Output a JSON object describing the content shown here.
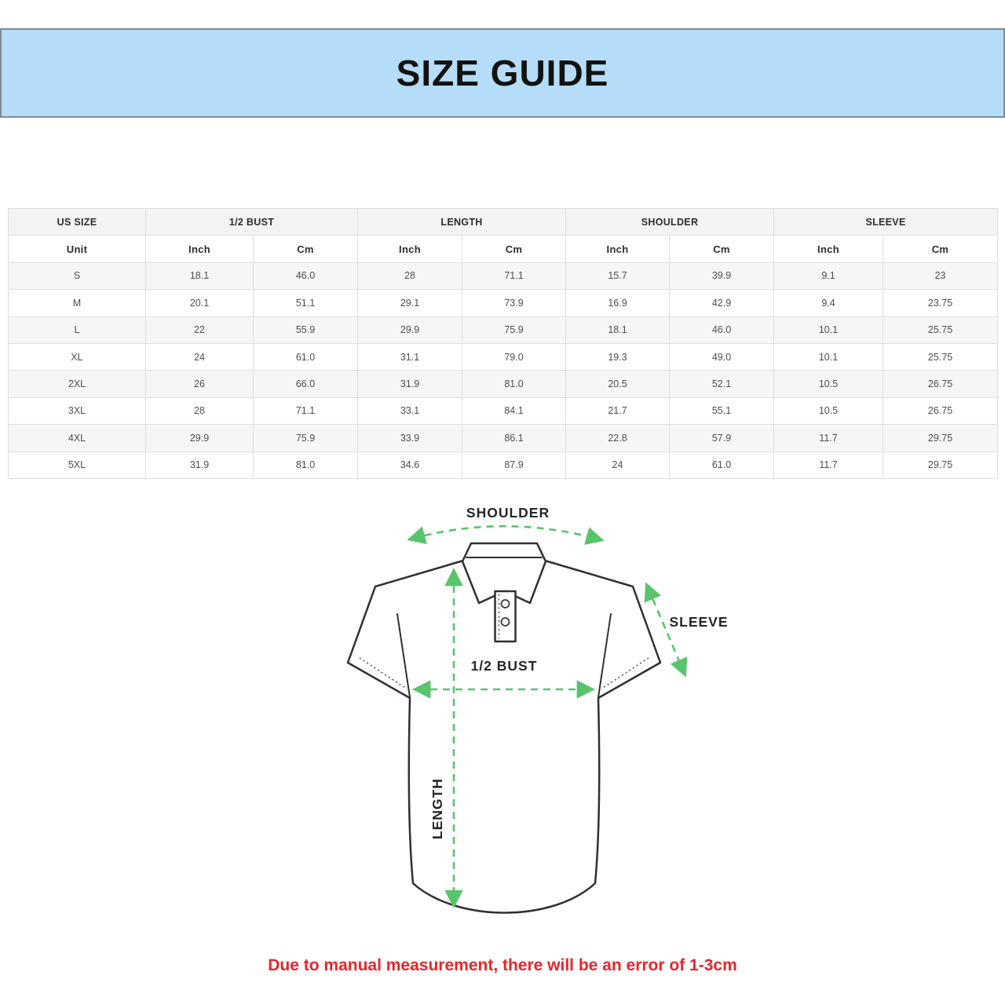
{
  "banner": {
    "title": "SIZE GUIDE",
    "bg_color": "#b5dcf8",
    "border_color": "#7f8a94"
  },
  "table": {
    "groups": [
      {
        "label": "US SIZE",
        "span": 1
      },
      {
        "label": "1/2 BUST",
        "span": 2
      },
      {
        "label": "LENGTH",
        "span": 2
      },
      {
        "label": "SHOULDER",
        "span": 2
      },
      {
        "label": "SLEEVE",
        "span": 2
      }
    ],
    "unit_row": [
      "Unit",
      "Inch",
      "Cm",
      "Inch",
      "Cm",
      "Inch",
      "Cm",
      "Inch",
      "Cm"
    ],
    "rows": [
      [
        "S",
        "18.1",
        "46.0",
        "28",
        "71.1",
        "15.7",
        "39.9",
        "9.1",
        "23"
      ],
      [
        "M",
        "20.1",
        "51.1",
        "29.1",
        "73.9",
        "16.9",
        "42.9",
        "9.4",
        "23.75"
      ],
      [
        "L",
        "22",
        "55.9",
        "29.9",
        "75.9",
        "18.1",
        "46.0",
        "10.1",
        "25.75"
      ],
      [
        "XL",
        "24",
        "61.0",
        "31.1",
        "79.0",
        "19.3",
        "49.0",
        "10.1",
        "25.75"
      ],
      [
        "2XL",
        "26",
        "66.0",
        "31.9",
        "81.0",
        "20.5",
        "52.1",
        "10.5",
        "26.75"
      ],
      [
        "3XL",
        "28",
        "71.1",
        "33.1",
        "84.1",
        "21.7",
        "55.1",
        "10.5",
        "26.75"
      ],
      [
        "4XL",
        "29.9",
        "75.9",
        "33.9",
        "86.1",
        "22.8",
        "57.9",
        "11.7",
        "29.75"
      ],
      [
        "5XL",
        "31.9",
        "81.0",
        "34.6",
        "87.9",
        "24",
        "61.0",
        "11.7",
        "29.75"
      ]
    ]
  },
  "diagram": {
    "labels": {
      "shoulder": "SHOULDER",
      "sleeve": "SLEEVE",
      "bust": "1/2 BUST",
      "length": "LENGTH"
    },
    "arrow_color": "#58c46c",
    "outline_color": "#303030"
  },
  "note": {
    "text": "Due to manual measurement, there will be an error of 1-3cm",
    "color": "#e7252b"
  }
}
